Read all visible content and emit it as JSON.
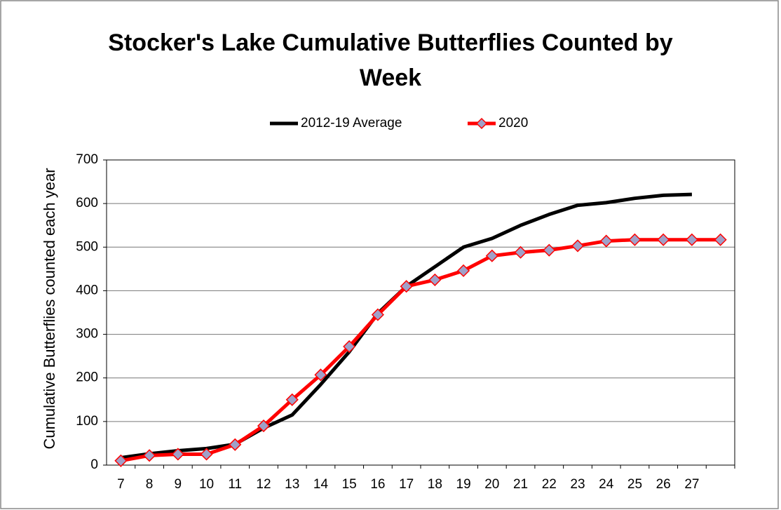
{
  "chart_data": {
    "type": "line",
    "title": "Stocker's Lake Cumulative Butterflies Counted by Week",
    "y_label": "Cumulative Butterflies counted each year",
    "categories": [
      "7",
      "8",
      "9",
      "10",
      "11",
      "12",
      "13",
      "14",
      "15",
      "16",
      "17",
      "18",
      "19",
      "20",
      "21",
      "22",
      "23",
      "24",
      "25",
      "26",
      "27",
      null
    ],
    "series": [
      {
        "name": "2012-19 Average",
        "color": "#000000",
        "marker": false,
        "values": [
          17,
          26,
          33,
          38,
          48,
          85,
          115,
          185,
          260,
          348,
          410,
          455,
          500,
          520,
          550,
          575,
          596,
          602,
          612,
          619,
          621,
          null
        ]
      },
      {
        "name": "2020",
        "color": "#ff0000",
        "marker": true,
        "values": [
          10,
          22,
          25,
          25,
          47,
          90,
          150,
          207,
          272,
          345,
          410,
          425,
          446,
          480,
          488,
          493,
          503,
          514,
          517,
          517,
          517,
          517
        ]
      }
    ],
    "ylim": [
      0,
      700
    ],
    "yticks": [
      0,
      100,
      200,
      300,
      400,
      500,
      600,
      700
    ],
    "grid": true,
    "legend": "top"
  }
}
